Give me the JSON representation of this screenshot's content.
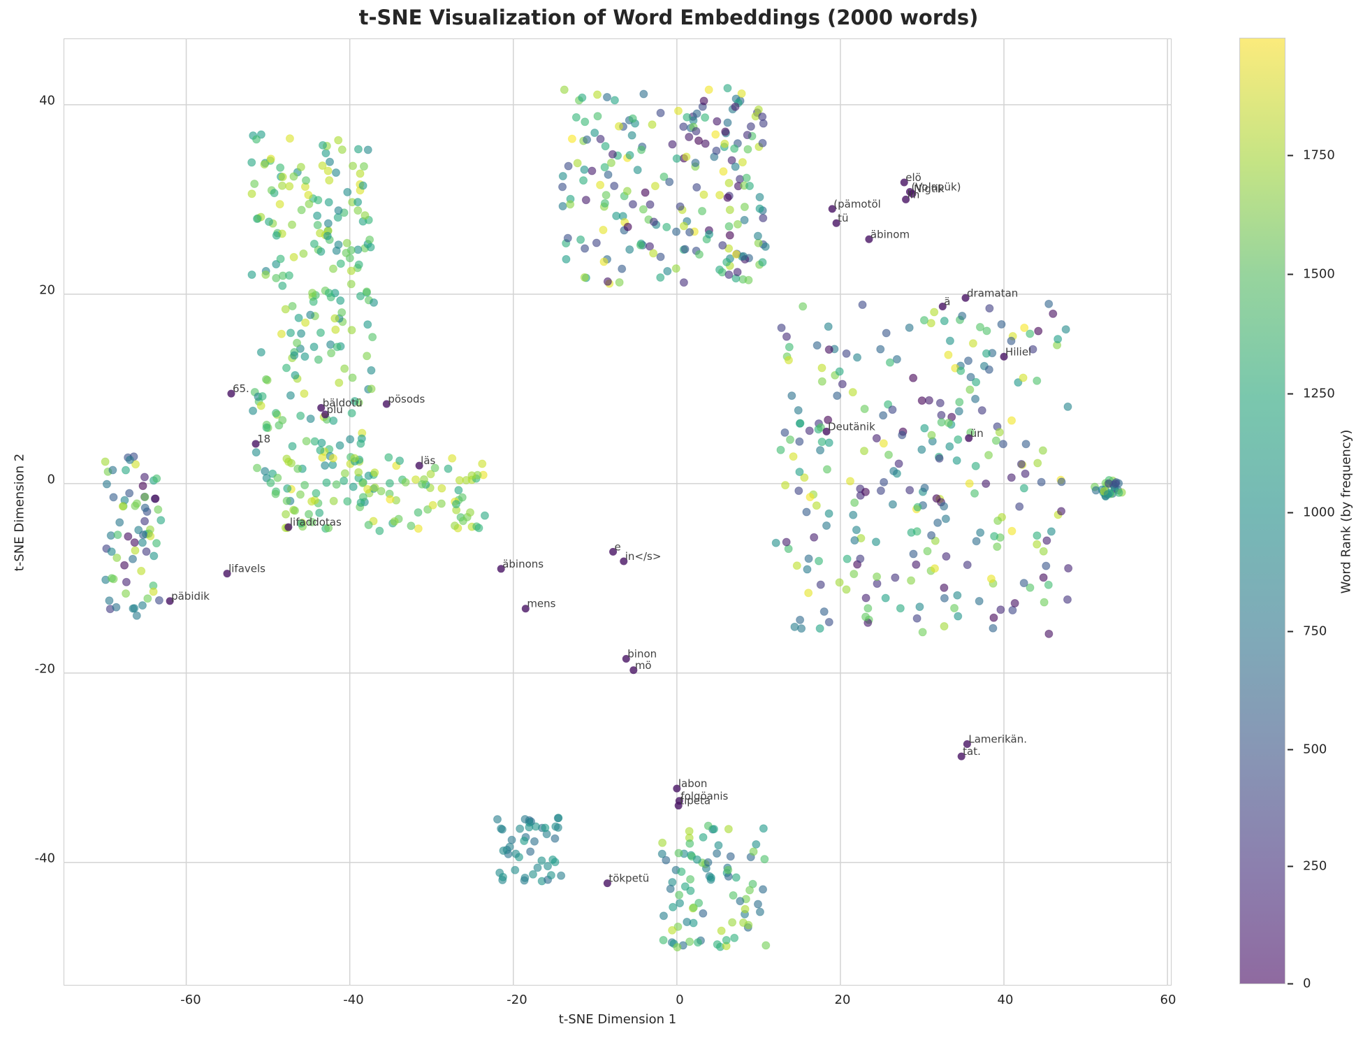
{
  "chart_data": {
    "type": "scatter",
    "title": "t-SNE Visualization of Word Embeddings (2000 words)",
    "xlabel": "t-SNE Dimension 1",
    "ylabel": "t-SNE Dimension 2",
    "xlim": [
      -75,
      60.5
    ],
    "ylim": [
      -53,
      47
    ],
    "xticks": [
      -60,
      -40,
      -20,
      0,
      20,
      40,
      60
    ],
    "yticks": [
      -40,
      -20,
      0,
      20,
      40
    ],
    "grid": true,
    "colorbar": {
      "label": "Word Rank (by frequency)",
      "colormap": "viridis",
      "range": [
        0,
        1999
      ],
      "ticks": [
        0,
        250,
        500,
        750,
        1000,
        1250,
        1500,
        1750
      ]
    },
    "n_points": 2000,
    "annotations": [
      {
        "text": "65.",
        "x": -54.5,
        "y": 9.5
      },
      {
        "text": "bäldotü",
        "x": -43.5,
        "y": 8.0
      },
      {
        "text": "plu",
        "x": -43.0,
        "y": 7.3
      },
      {
        "text": "pösods",
        "x": -35.5,
        "y": 8.4
      },
      {
        "text": "18",
        "x": -51.5,
        "y": 4.2
      },
      {
        "text": "läs",
        "x": -31.5,
        "y": 1.9
      },
      {
        "text": "lifaddotas",
        "x": -47.5,
        "y": -4.6
      },
      {
        "text": "lifavels",
        "x": -55.0,
        "y": -9.5
      },
      {
        "text": "päbidik",
        "x": -62.0,
        "y": -12.4
      },
      {
        "text": "äbinons",
        "x": -21.5,
        "y": -9.0
      },
      {
        "text": "mens",
        "x": -18.5,
        "y": -13.2
      },
      {
        "text": "e",
        "x": -7.8,
        "y": -7.2
      },
      {
        "text": "in</s>",
        "x": -6.5,
        "y": -8.2
      },
      {
        "text": "binon",
        "x": -6.2,
        "y": -18.5
      },
      {
        "text": "mö",
        "x": -5.3,
        "y": -19.7
      },
      {
        "text": "labon",
        "x": 0.0,
        "y": -32.2
      },
      {
        "text": "folgöanis",
        "x": 0.3,
        "y": -33.5
      },
      {
        "text": "tipeta",
        "x": 0.2,
        "y": -34.0
      },
      {
        "text": "tökpetü",
        "x": -8.5,
        "y": -42.2
      },
      {
        "text": "(pämotöl",
        "x": 19.0,
        "y": 29.0
      },
      {
        "text": "tü",
        "x": 19.5,
        "y": 27.5
      },
      {
        "text": "äbinom",
        "x": 23.5,
        "y": 25.8
      },
      {
        "text": "elö",
        "x": 27.8,
        "y": 31.8
      },
      {
        "text": "(Volapük)",
        "x": 28.5,
        "y": 30.8
      },
      {
        "text": "Nigtik",
        "x": 28.8,
        "y": 30.6
      },
      {
        "text": "lin",
        "x": 28.0,
        "y": 30.0
      },
      {
        "text": "ä",
        "x": 32.5,
        "y": 18.7
      },
      {
        "text": "dramatan",
        "x": 35.3,
        "y": 19.6
      },
      {
        "text": "Hiliel",
        "x": 40.0,
        "y": 13.4
      },
      {
        "text": "Deutänik",
        "x": 18.3,
        "y": 5.5
      },
      {
        "text": "ün",
        "x": 35.7,
        "y": 4.8
      },
      {
        "text": "Lamerikän.",
        "x": 35.5,
        "y": -27.5
      },
      {
        "text": "tat.",
        "x": 34.8,
        "y": -28.8
      }
    ],
    "clusters": [
      {
        "name": "top-left arc",
        "x_range": [
          -52,
          -37
        ],
        "y_range": [
          -2,
          37
        ],
        "rank_range": [
          900,
          1900
        ]
      },
      {
        "name": "left lower band",
        "x_range": [
          -48,
          -23
        ],
        "y_range": [
          -5,
          3
        ],
        "rank_range": [
          1200,
          1990
        ]
      },
      {
        "name": "far-left chain",
        "x_range": [
          -70,
          -63
        ],
        "y_range": [
          -14,
          3
        ],
        "rank_range": [
          0,
          1900
        ]
      },
      {
        "name": "top-center cloud",
        "x_range": [
          -14,
          11
        ],
        "y_range": [
          21,
          42
        ],
        "rank_range": [
          0,
          1990
        ]
      },
      {
        "name": "right center field",
        "x_range": [
          12,
          48
        ],
        "y_range": [
          -16,
          19
        ],
        "rank_range": [
          0,
          1990
        ]
      },
      {
        "name": "bottom-left blob",
        "x_range": [
          -22,
          -14
        ],
        "y_range": [
          -42,
          -35
        ],
        "rank_range": [
          700,
          1100
        ]
      },
      {
        "name": "bottom-center blob",
        "x_range": [
          -2,
          11
        ],
        "y_range": [
          -49,
          -36
        ],
        "rank_range": [
          600,
          1800
        ]
      },
      {
        "name": "far-right small cluster",
        "x_range": [
          51,
          54.5
        ],
        "y_range": [
          -1.5,
          0.5
        ],
        "rank_range": [
          200,
          1800
        ]
      }
    ]
  }
}
